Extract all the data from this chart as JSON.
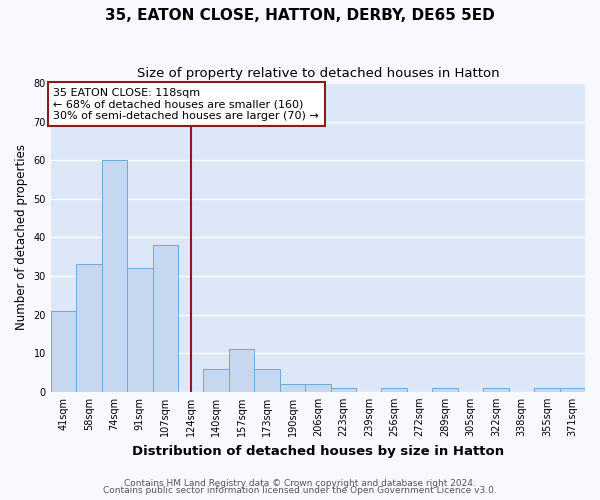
{
  "title": "35, EATON CLOSE, HATTON, DERBY, DE65 5ED",
  "subtitle": "Size of property relative to detached houses in Hatton",
  "xlabel": "Distribution of detached houses by size in Hatton",
  "ylabel": "Number of detached properties",
  "categories": [
    "41sqm",
    "58sqm",
    "74sqm",
    "91sqm",
    "107sqm",
    "124sqm",
    "140sqm",
    "157sqm",
    "173sqm",
    "190sqm",
    "206sqm",
    "223sqm",
    "239sqm",
    "256sqm",
    "272sqm",
    "289sqm",
    "305sqm",
    "322sqm",
    "338sqm",
    "355sqm",
    "371sqm"
  ],
  "values": [
    21,
    33,
    60,
    32,
    38,
    0,
    6,
    11,
    6,
    2,
    2,
    1,
    0,
    1,
    0,
    1,
    0,
    1,
    0,
    1,
    1
  ],
  "bar_color": "#c5d8f0",
  "bar_edge_color": "#6aabda",
  "annotation_line_color": "#8b1a1a",
  "annotation_box_color": "#8b1a1a",
  "annotation_text_line1": "35 EATON CLOSE: 118sqm",
  "annotation_text_line2": "← 68% of detached houses are smaller (160)",
  "annotation_text_line3": "30% of semi-detached houses are larger (70) →",
  "ylim": [
    0,
    80
  ],
  "yticks": [
    0,
    10,
    20,
    30,
    40,
    50,
    60,
    70,
    80
  ],
  "red_line_x": 5.5,
  "footer_line1": "Contains HM Land Registry data © Crown copyright and database right 2024.",
  "footer_line2": "Contains public sector information licensed under the Open Government Licence v3.0.",
  "fig_bg_color": "#f8f9ff",
  "plot_bg_color": "#dce8f8",
  "grid_color": "#ffffff",
  "title_fontsize": 11,
  "subtitle_fontsize": 9.5,
  "xlabel_fontsize": 9.5,
  "ylabel_fontsize": 8.5,
  "tick_fontsize": 7,
  "annotation_fontsize": 8,
  "footer_fontsize": 6.5
}
